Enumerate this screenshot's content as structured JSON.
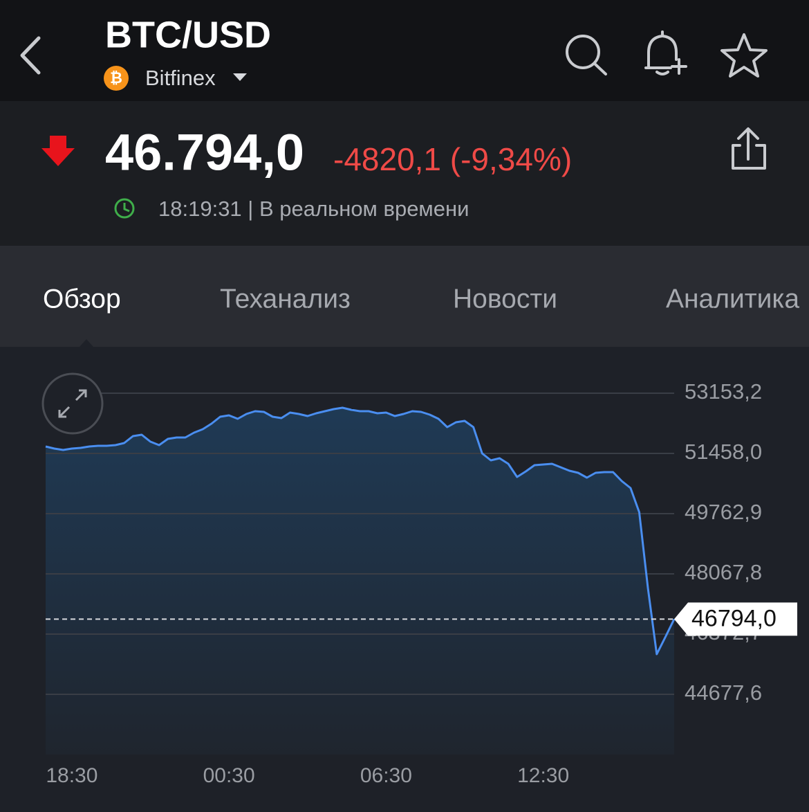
{
  "header": {
    "title": "BTC/USD",
    "exchange": "Bitfinex"
  },
  "quote": {
    "price": "46.794,0",
    "change": "-4820,1 (-9,34%)",
    "time": "18:19:31 | В реальном времени"
  },
  "tabs": [
    "Обзор",
    "Теханализ",
    "Новости",
    "Аналитика"
  ],
  "chart_data": {
    "type": "line",
    "color": "#4a8ef0",
    "categories": [
      null,
      null,
      null,
      "18:30",
      null,
      null,
      null,
      null,
      null,
      null,
      null,
      null,
      null,
      null,
      null,
      null,
      null,
      null,
      null,
      null,
      null,
      "00:30",
      null,
      null,
      null,
      null,
      null,
      null,
      null,
      null,
      null,
      null,
      null,
      null,
      null,
      null,
      null,
      null,
      null,
      "06:30",
      null,
      null,
      null,
      null,
      null,
      null,
      null,
      null,
      null,
      null,
      null,
      null,
      null,
      null,
      null,
      null,
      null,
      "12:30",
      null,
      null,
      null,
      null,
      null,
      null,
      null,
      null,
      null,
      null,
      null,
      null,
      null,
      null,
      null
    ],
    "values": [
      51653,
      51594,
      51555,
      51594,
      51614,
      51653,
      51672,
      51672,
      51692,
      51750,
      51945,
      51984,
      51789,
      51692,
      51867,
      51906,
      51906,
      52043,
      52140,
      52296,
      52491,
      52530,
      52432,
      52569,
      52647,
      52627,
      52491,
      52452,
      52608,
      52569,
      52510,
      52588,
      52647,
      52705,
      52744,
      52686,
      52647,
      52647,
      52588,
      52608,
      52510,
      52569,
      52647,
      52627,
      52549,
      52432,
      52198,
      52335,
      52374,
      52198,
      51458,
      51263,
      51322,
      51166,
      50796,
      50952,
      51127,
      51146,
      51166,
      51068,
      50971,
      50913,
      50776,
      50913,
      50932,
      50932,
      50679,
      50484,
      49802,
      47659,
      45808,
      46295,
      46794.0
    ],
    "ylim": [
      42982.5,
      54088.4
    ],
    "yticks": [
      {
        "value": 44677.6,
        "label": "44677,6"
      },
      {
        "value": 46372.7,
        "label": "46372,7"
      },
      {
        "value": 48067.8,
        "label": "48067,8"
      },
      {
        "value": 49762.9,
        "label": "49762,9"
      },
      {
        "value": 51458.0,
        "label": "51458,0"
      },
      {
        "value": 53153.2,
        "label": "53153,2"
      }
    ],
    "current_price": {
      "value": 46794.0,
      "label": "46794,0"
    },
    "grid": true
  }
}
